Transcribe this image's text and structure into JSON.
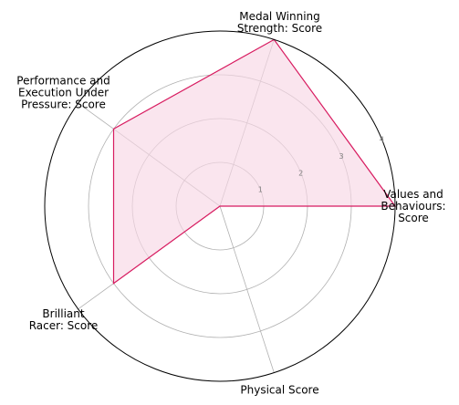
{
  "chart_data": {
    "type": "radar",
    "title": "",
    "axes": [
      "Values and Behaviours: Score",
      "Medal Winning Strength: Score",
      "Performance and Execution Under Pressure: Score",
      "Brilliant Racer: Score",
      "Physical Score"
    ],
    "axis_label_lines": [
      [
        "Values and",
        "Behaviours:",
        "Score"
      ],
      [
        "Medal Winning",
        "Strength: Score"
      ],
      [
        "Performance and",
        "Execution Under",
        "Pressure: Score"
      ],
      [
        "Brilliant",
        "Racer: Score"
      ],
      [
        "Physical Score"
      ]
    ],
    "series": [
      {
        "values": [
          4,
          4,
          3,
          3,
          0
        ]
      }
    ],
    "rlim": [
      0,
      4
    ],
    "rticks": [
      1,
      2,
      3,
      4
    ],
    "rtick_labels": [
      "1",
      "2",
      "3",
      "4"
    ],
    "grid": true,
    "colors": {
      "line": "#d81b60",
      "fill": "#f8d7e5",
      "grid": "#b0b0b0",
      "frame": "#000000",
      "tick_text": "#7f7f7f"
    }
  }
}
